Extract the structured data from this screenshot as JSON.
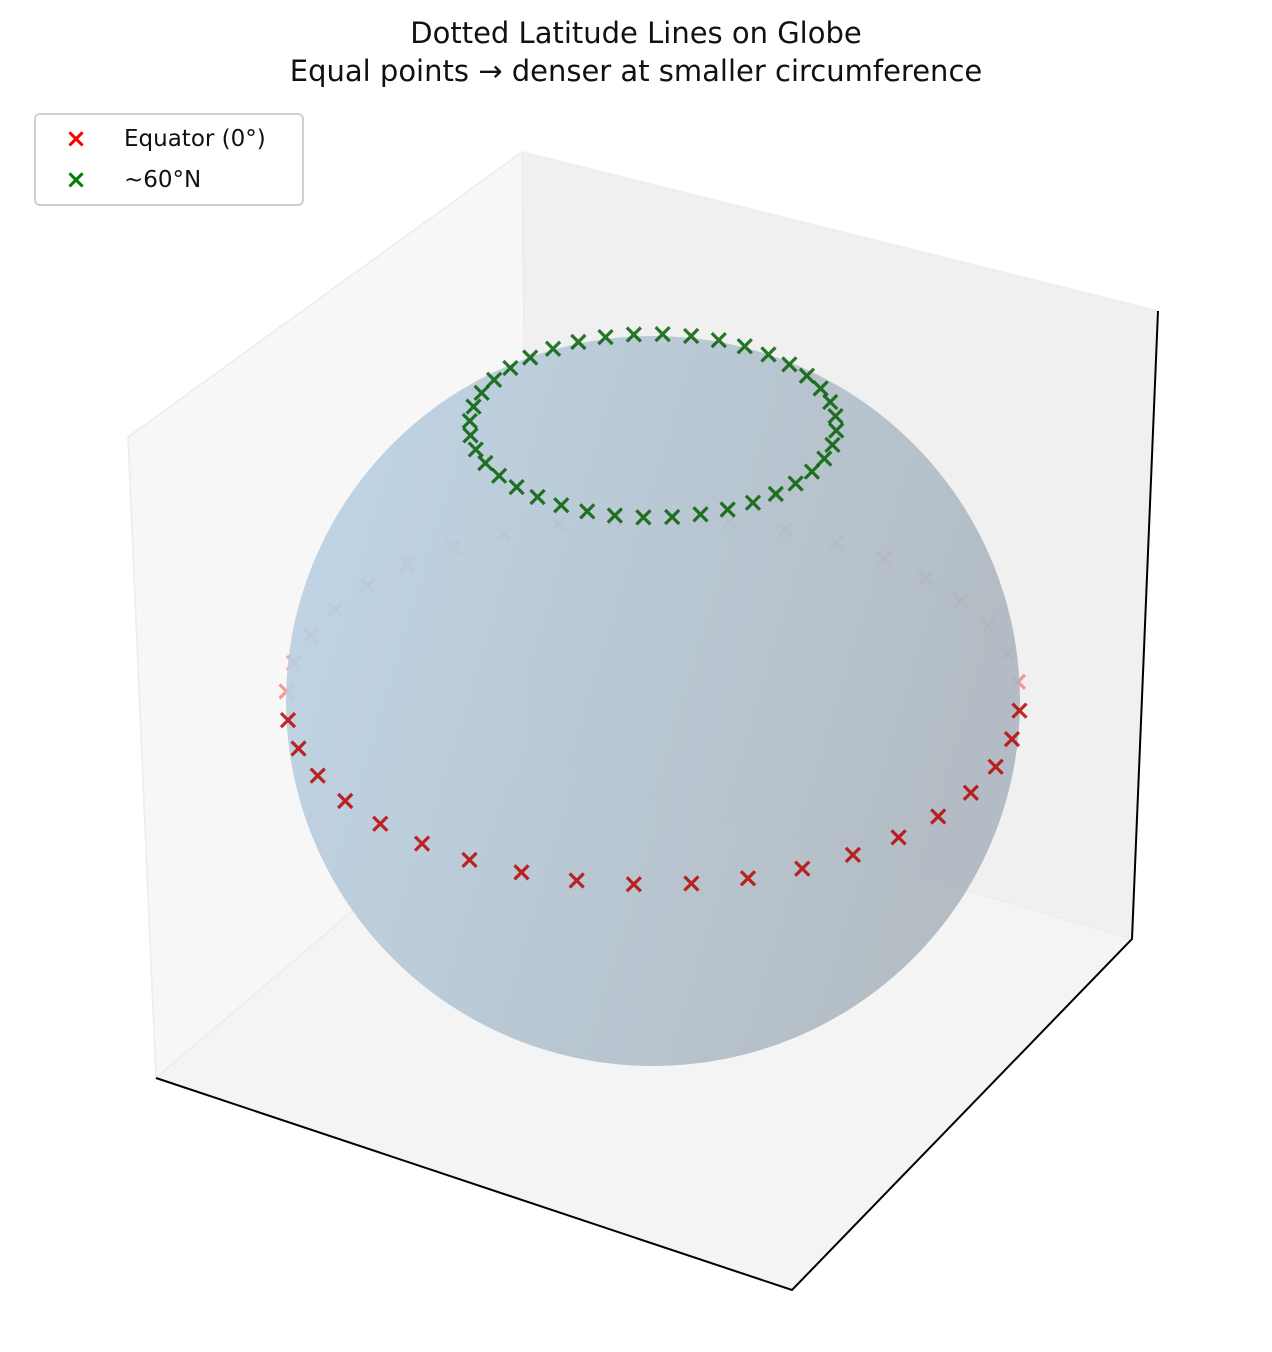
{
  "chart_data": {
    "type": "scatter",
    "title": "Dotted Latitude Lines on Globe",
    "subtitle": "Equal points → denser at smaller circumference",
    "series": [
      {
        "name": "Equator (0°)",
        "color": "#ff0000",
        "marker": "x",
        "latitude_deg": 0,
        "count": 40
      },
      {
        "name": "~60°N",
        "color": "#008000",
        "marker": "x",
        "latitude_deg": 60,
        "count": 40
      }
    ],
    "sphere": {
      "radius": 1,
      "color": "#b7cde0"
    },
    "xlim": [
      -1,
      1
    ],
    "ylim": [
      -1,
      1
    ],
    "zlim": [
      -1,
      1
    ],
    "legend_position": "top-left",
    "axes_ticks": false
  }
}
